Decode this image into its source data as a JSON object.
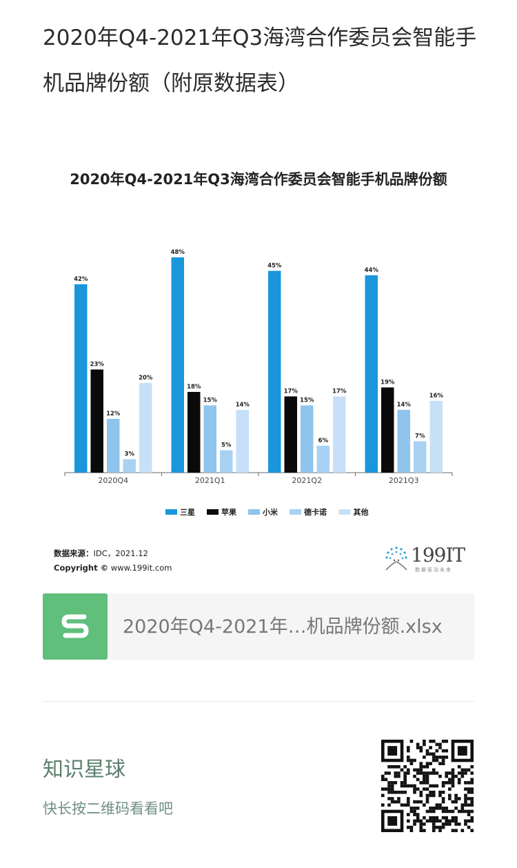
{
  "page_title": "2020年Q4-2021年Q3海湾合作委员会智能手机品牌份额（附原数据表）",
  "chart_card": {
    "source_label": "数据来源：",
    "source_value": "IDC，2021.12",
    "copyright_label": "Copyright ©",
    "copyright_value": "www.199it.com",
    "brand_name": "199IT",
    "brand_sub": "数据驱动未来"
  },
  "chart_data": {
    "type": "bar",
    "title": "2020年Q4-2021年Q3海湾合作委员会智能手机品牌份额",
    "categories": [
      "2020Q4",
      "2021Q1",
      "2021Q2",
      "2021Q3"
    ],
    "series": [
      {
        "name": "三星",
        "values": [
          42,
          48,
          45,
          44
        ],
        "color": "#1a96dc"
      },
      {
        "name": "苹果",
        "values": [
          23,
          18,
          17,
          19
        ],
        "color": "#0a0a0a"
      },
      {
        "name": "小米",
        "values": [
          12,
          15,
          15,
          14
        ],
        "color": "#8fc4ec"
      },
      {
        "name": "德卡诺",
        "values": [
          3,
          5,
          6,
          7
        ],
        "color": "#a9d2f2"
      },
      {
        "name": "其他",
        "values": [
          20,
          14,
          17,
          16
        ],
        "color": "#c6e1f7"
      }
    ],
    "value_suffix": "%",
    "ylim": [
      0,
      50
    ],
    "legend_position": "bottom",
    "grid": false
  },
  "file": {
    "icon": "spreadsheet-s-icon",
    "name": "2020年Q4-2021年…机品牌份额.xlsx"
  },
  "footer": {
    "title": "知识星球",
    "subtitle": "快长按二维码看看吧"
  }
}
